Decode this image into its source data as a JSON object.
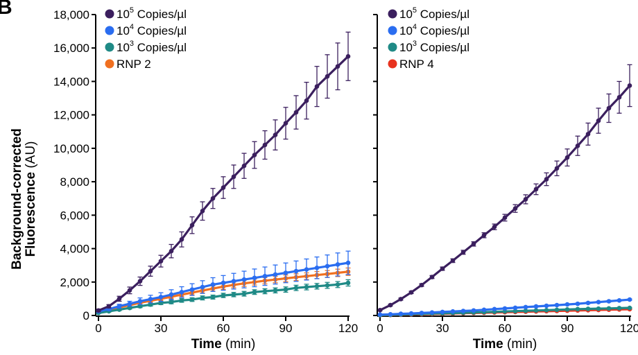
{
  "figure": {
    "panel_letter": "B",
    "ylabel_bold_line1": "Background-corrected",
    "ylabel_bold_line2": "Fluorescence",
    "ylabel_unit": "(AU)",
    "xlabel_bold": "Time",
    "xlabel_unit": "(min)"
  },
  "colors": {
    "c1e5": "#3b1f5e",
    "c1e4": "#2a6df0",
    "c1e3": "#1f8a86",
    "rnp2": "#f07020",
    "rnp4": "#e8331f"
  },
  "chart_data": [
    {
      "type": "line",
      "xlabel": "Time (min)",
      "ylabel": "Background-corrected Fluorescence (AU)",
      "xlim": [
        0,
        120
      ],
      "ylim": [
        0,
        18000
      ],
      "x_ticks": [
        0,
        30,
        60,
        90,
        120
      ],
      "y_ticks": [
        0,
        2000,
        4000,
        6000,
        8000,
        10000,
        12000,
        14000,
        16000,
        18000
      ],
      "y_tick_labels": [
        "0",
        "2,000",
        "4,000",
        "6,000",
        "8,000",
        "10,000",
        "12,000",
        "14,000",
        "16,000",
        "18,000"
      ],
      "legend": "top-left",
      "x": [
        0,
        5,
        10,
        15,
        20,
        25,
        30,
        35,
        40,
        45,
        50,
        55,
        60,
        65,
        70,
        75,
        80,
        85,
        90,
        95,
        100,
        105,
        110,
        115,
        120
      ],
      "series": [
        {
          "name": "10",
          "exp": "5",
          "suffix": "Copies/µl",
          "color_key": "c1e5",
          "values": [
            300,
            550,
            1000,
            1500,
            2050,
            2650,
            3250,
            3850,
            4550,
            5400,
            6250,
            7000,
            7650,
            8300,
            8950,
            9600,
            10200,
            10800,
            11500,
            12150,
            12850,
            13700,
            14300,
            14900,
            15500
          ],
          "errors": [
            80,
            100,
            150,
            200,
            250,
            300,
            350,
            400,
            450,
            500,
            550,
            600,
            650,
            700,
            750,
            800,
            850,
            900,
            950,
            1000,
            1100,
            1200,
            1300,
            1400,
            1450
          ]
        },
        {
          "name": "10",
          "exp": "4",
          "suffix": "Copies/µl",
          "color_key": "c1e4",
          "values": [
            250,
            380,
            550,
            700,
            850,
            980,
            1100,
            1250,
            1400,
            1550,
            1700,
            1850,
            1950,
            2050,
            2150,
            2250,
            2350,
            2450,
            2550,
            2650,
            2750,
            2850,
            2950,
            3050,
            3150
          ],
          "errors": [
            60,
            80,
            120,
            150,
            200,
            230,
            260,
            290,
            320,
            350,
            380,
            410,
            440,
            470,
            500,
            530,
            550,
            570,
            590,
            610,
            630,
            650,
            670,
            690,
            700
          ]
        },
        {
          "name": "10",
          "exp": "3",
          "suffix": "Copies/µl",
          "color_key": "c1e3",
          "values": [
            150,
            250,
            350,
            450,
            550,
            650,
            750,
            800,
            900,
            950,
            1050,
            1100,
            1200,
            1250,
            1300,
            1400,
            1450,
            1500,
            1550,
            1650,
            1700,
            1750,
            1800,
            1850,
            1950
          ],
          "errors": [
            40,
            50,
            60,
            70,
            80,
            90,
            100,
            100,
            110,
            110,
            120,
            120,
            130,
            130,
            140,
            140,
            150,
            150,
            160,
            160,
            170,
            170,
            180,
            180,
            190
          ]
        },
        {
          "name": "RNP 2",
          "exp": "",
          "suffix": "",
          "color_key": "rnp2",
          "values": [
            220,
            330,
            480,
            620,
            760,
            880,
            1000,
            1120,
            1250,
            1370,
            1490,
            1610,
            1730,
            1830,
            1920,
            2000,
            2080,
            2150,
            2220,
            2290,
            2350,
            2420,
            2480,
            2550,
            2620
          ],
          "errors": [
            50,
            60,
            70,
            80,
            90,
            100,
            110,
            120,
            130,
            140,
            150,
            160,
            170,
            170,
            180,
            180,
            190,
            190,
            200,
            200,
            200,
            210,
            210,
            220,
            220
          ]
        }
      ]
    },
    {
      "type": "line",
      "xlabel": "Time (min)",
      "xlim": [
        0,
        120
      ],
      "ylim": [
        0,
        18000
      ],
      "x_ticks": [
        0,
        30,
        60,
        90,
        120
      ],
      "legend": "top-left",
      "x": [
        0,
        5,
        10,
        15,
        20,
        25,
        30,
        35,
        40,
        45,
        50,
        55,
        60,
        65,
        70,
        75,
        80,
        85,
        90,
        95,
        100,
        105,
        110,
        115,
        120
      ],
      "series": [
        {
          "name": "10",
          "exp": "5",
          "suffix": "Copies/µl",
          "color_key": "c1e5",
          "values": [
            320,
            620,
            980,
            1380,
            1820,
            2300,
            2800,
            3280,
            3780,
            4280,
            4800,
            5300,
            5850,
            6400,
            6950,
            7550,
            8150,
            8800,
            9450,
            10150,
            10850,
            11650,
            12400,
            13050,
            13750
          ],
          "errors": [
            40,
            50,
            60,
            70,
            80,
            90,
            100,
            110,
            120,
            130,
            150,
            170,
            200,
            230,
            270,
            320,
            380,
            440,
            510,
            580,
            660,
            750,
            850,
            950,
            1250
          ]
        },
        {
          "name": "10",
          "exp": "4",
          "suffix": "Copies/µl",
          "color_key": "c1e4",
          "values": [
            50,
            70,
            100,
            120,
            150,
            180,
            210,
            240,
            270,
            300,
            340,
            380,
            420,
            460,
            500,
            540,
            580,
            620,
            660,
            700,
            750,
            800,
            850,
            900,
            950
          ],
          "errors": [
            10,
            10,
            15,
            15,
            20,
            20,
            20,
            25,
            25,
            25,
            30,
            30,
            30,
            30,
            30,
            35,
            35,
            35,
            35,
            35,
            40,
            40,
            40,
            40,
            40
          ]
        },
        {
          "name": "10",
          "exp": "3",
          "suffix": "Copies/µl",
          "color_key": "c1e3",
          "values": [
            20,
            40,
            60,
            80,
            100,
            115,
            130,
            145,
            160,
            180,
            200,
            220,
            240,
            260,
            280,
            300,
            320,
            340,
            360,
            380,
            395,
            410,
            425,
            440,
            455
          ],
          "errors": [
            5,
            5,
            5,
            8,
            8,
            8,
            10,
            10,
            10,
            10,
            12,
            12,
            12,
            12,
            12,
            15,
            15,
            15,
            15,
            15,
            15,
            15,
            15,
            15,
            15
          ]
        },
        {
          "name": "RNP 4",
          "exp": "",
          "suffix": "",
          "color_key": "rnp4",
          "values": [
            15,
            30,
            45,
            60,
            75,
            90,
            105,
            120,
            135,
            150,
            165,
            180,
            195,
            210,
            225,
            240,
            255,
            270,
            285,
            300,
            315,
            330,
            345,
            360,
            375
          ],
          "errors": [
            5,
            5,
            5,
            5,
            5,
            5,
            8,
            8,
            8,
            8,
            8,
            8,
            10,
            10,
            10,
            10,
            10,
            10,
            10,
            10,
            10,
            10,
            12,
            12,
            12
          ]
        }
      ]
    }
  ]
}
